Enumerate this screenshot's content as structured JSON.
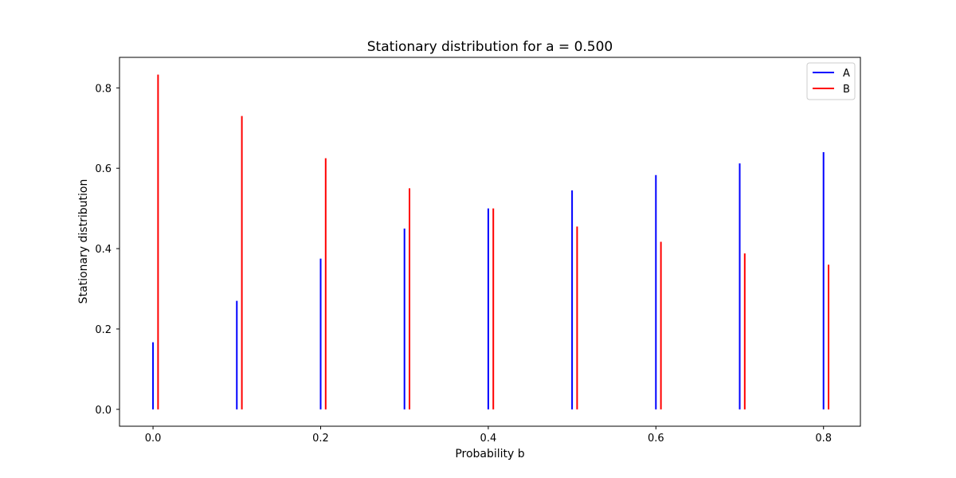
{
  "chart_data": {
    "type": "bar",
    "title": "Stationary distribution for a = 0.500",
    "xlabel": "Probability b",
    "ylabel": "Stationary distribution",
    "x": [
      0.0,
      0.1,
      0.2,
      0.3,
      0.4,
      0.5,
      0.6,
      0.7,
      0.8
    ],
    "xlim": [
      -0.04,
      0.844
    ],
    "ylim": [
      -0.042,
      0.876
    ],
    "x_ticks": [
      "0.0",
      "0.2",
      "0.4",
      "0.6",
      "0.8"
    ],
    "y_ticks": [
      "0.0",
      "0.2",
      "0.4",
      "0.6",
      "0.8"
    ],
    "grid": false,
    "legend": "top-right",
    "series": [
      {
        "name": "A",
        "color": "#0000ff",
        "offset": 0.0,
        "values": [
          0.167,
          0.27,
          0.375,
          0.45,
          0.5,
          0.545,
          0.583,
          0.612,
          0.64
        ]
      },
      {
        "name": "B",
        "color": "#ff0000",
        "offset": 0.006,
        "values": [
          0.833,
          0.73,
          0.625,
          0.55,
          0.5,
          0.455,
          0.417,
          0.388,
          0.36
        ]
      }
    ]
  }
}
